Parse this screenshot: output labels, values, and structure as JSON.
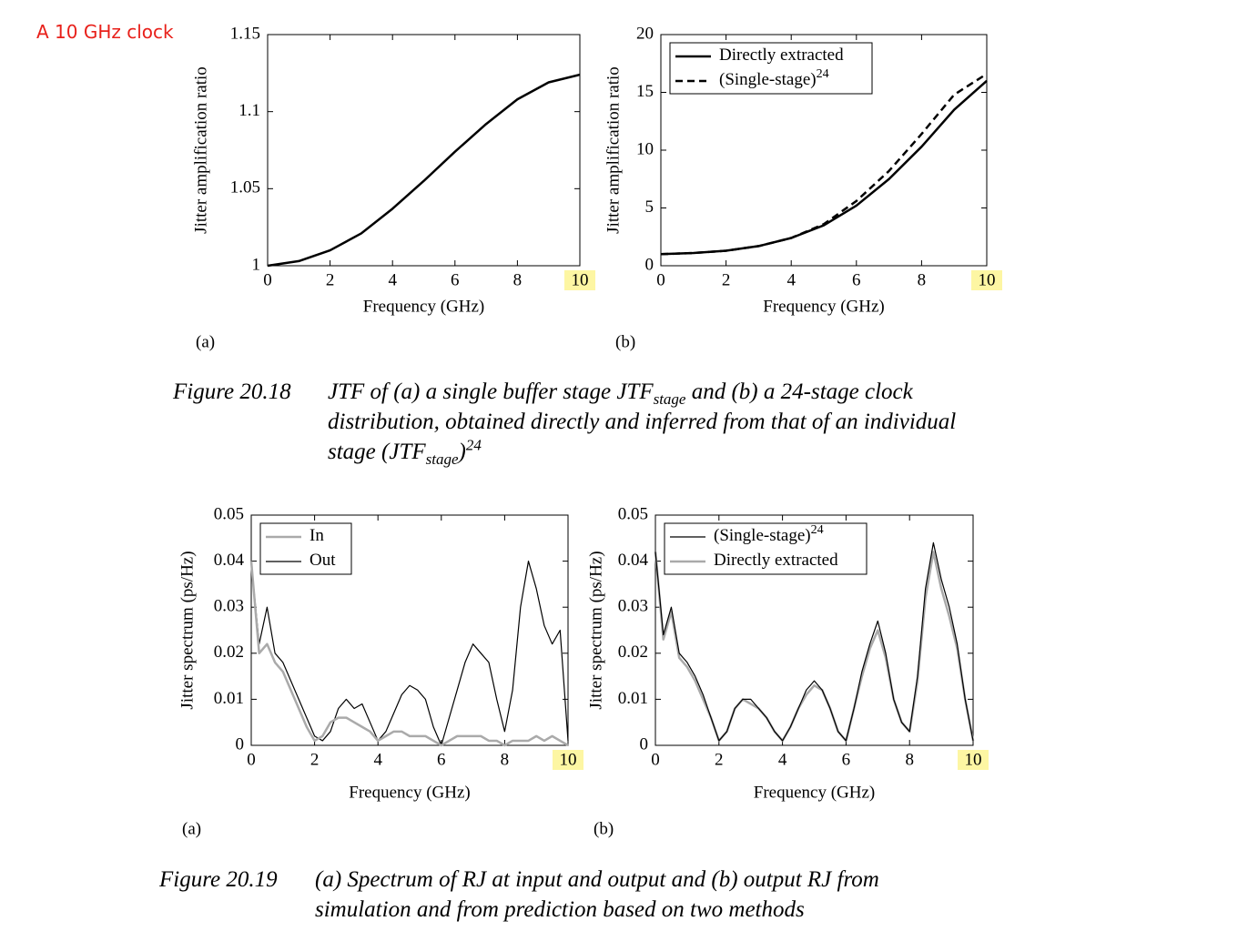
{
  "annotation": "A 10 GHz clock",
  "chart_data": [
    {
      "type": "line",
      "panel": "(a)",
      "xlabel": "Frequency (GHz)",
      "ylabel": "Jitter amplification ratio",
      "x": [
        0,
        1,
        2,
        3,
        4,
        5,
        6,
        7,
        8,
        9,
        10
      ],
      "values": [
        1.0,
        1.003,
        1.01,
        1.021,
        1.037,
        1.055,
        1.074,
        1.092,
        1.108,
        1.119,
        1.124
      ],
      "color": "#000000",
      "line_width": 2.5,
      "xlim": [
        0,
        10
      ],
      "xticks": [
        0,
        2,
        4,
        6,
        8,
        10
      ],
      "ylim": [
        1,
        1.15
      ],
      "yticks": [
        1,
        1.05,
        1.1,
        1.15
      ],
      "highlighted_xtick_color": "#fdf6a3"
    },
    {
      "type": "line",
      "panel": "(b)",
      "xlabel": "Frequency (GHz)",
      "ylabel": "Jitter amplification ratio",
      "x": [
        0,
        1,
        2,
        3,
        4,
        5,
        6,
        7,
        8,
        9,
        10
      ],
      "series": [
        {
          "name": "Directly extracted",
          "color": "#000000",
          "dashed": false,
          "line_width": 2.5,
          "values": [
            1.0,
            1.1,
            1.3,
            1.7,
            2.4,
            3.5,
            5.2,
            7.5,
            10.3,
            13.5,
            16.0
          ]
        },
        {
          "name": "(Single-stage)",
          "name_superscript": "24",
          "color": "#000000",
          "dashed": true,
          "line_width": 2.5,
          "values": [
            1.0,
            1.1,
            1.3,
            1.7,
            2.4,
            3.6,
            5.6,
            8.2,
            11.4,
            14.8,
            16.6
          ]
        }
      ],
      "legend": "upper left",
      "xlim": [
        0,
        10
      ],
      "xticks": [
        0,
        2,
        4,
        6,
        8,
        10
      ],
      "ylim": [
        0,
        20
      ],
      "yticks": [
        0,
        5,
        10,
        15,
        20
      ],
      "highlighted_xtick_color": "#fdf6a3"
    },
    {
      "type": "line",
      "panel": "(a)",
      "xlabel": "Frequency (GHz)",
      "ylabel": "Jitter spectrum (ps/Hz)",
      "x": [
        0,
        0.25,
        0.5,
        0.75,
        1,
        1.25,
        1.5,
        1.75,
        2,
        2.25,
        2.5,
        2.75,
        3,
        3.25,
        3.5,
        3.75,
        4,
        4.25,
        4.5,
        4.75,
        5,
        5.25,
        5.5,
        5.75,
        6,
        6.25,
        6.5,
        6.75,
        7,
        7.25,
        7.5,
        7.75,
        8,
        8.25,
        8.5,
        8.75,
        9,
        9.25,
        9.5,
        9.75,
        10
      ],
      "series": [
        {
          "name": "In",
          "color": "#aaaaaa",
          "dashed": false,
          "line_width": 2.5,
          "values": [
            0.04,
            0.02,
            0.022,
            0.018,
            0.016,
            0.012,
            0.008,
            0.004,
            0.001,
            0.002,
            0.005,
            0.006,
            0.006,
            0.005,
            0.004,
            0.003,
            0.001,
            0.002,
            0.003,
            0.003,
            0.002,
            0.002,
            0.002,
            0.001,
            0.0,
            0.001,
            0.002,
            0.002,
            0.002,
            0.002,
            0.001,
            0.001,
            0.0,
            0.001,
            0.001,
            0.001,
            0.002,
            0.001,
            0.002,
            0.001,
            0.0
          ]
        },
        {
          "name": "Out",
          "color": "#000000",
          "dashed": false,
          "line_width": 1.2,
          "values": [
            0.04,
            0.022,
            0.03,
            0.02,
            0.018,
            0.014,
            0.01,
            0.006,
            0.002,
            0.001,
            0.003,
            0.008,
            0.01,
            0.008,
            0.009,
            0.005,
            0.001,
            0.003,
            0.007,
            0.011,
            0.013,
            0.012,
            0.01,
            0.004,
            0.0,
            0.006,
            0.012,
            0.018,
            0.022,
            0.02,
            0.018,
            0.01,
            0.003,
            0.012,
            0.03,
            0.04,
            0.034,
            0.026,
            0.022,
            0.025,
            0.001
          ]
        }
      ],
      "legend": "upper left",
      "xlim": [
        0,
        10
      ],
      "xticks": [
        0,
        2,
        4,
        6,
        8,
        10
      ],
      "ylim": [
        0,
        0.05
      ],
      "yticks": [
        0,
        0.01,
        0.02,
        0.03,
        0.04,
        0.05
      ],
      "highlighted_xtick_color": "#fdf6a3"
    },
    {
      "type": "line",
      "panel": "(b)",
      "xlabel": "Frequency (GHz)",
      "ylabel": "Jitter spectrum (ps/Hz)",
      "x": [
        0,
        0.25,
        0.5,
        0.75,
        1,
        1.25,
        1.5,
        1.75,
        2,
        2.25,
        2.5,
        2.75,
        3,
        3.25,
        3.5,
        3.75,
        4,
        4.25,
        4.5,
        4.75,
        5,
        5.25,
        5.5,
        5.75,
        6,
        6.25,
        6.5,
        6.75,
        7,
        7.25,
        7.5,
        7.75,
        8,
        8.25,
        8.5,
        8.75,
        9,
        9.25,
        9.5,
        9.75,
        10
      ],
      "series": [
        {
          "name": "(Single-stage)",
          "name_superscript": "24",
          "color": "#000000",
          "dashed": false,
          "line_width": 1.2,
          "values": [
            0.042,
            0.024,
            0.03,
            0.02,
            0.018,
            0.015,
            0.011,
            0.006,
            0.001,
            0.003,
            0.008,
            0.01,
            0.01,
            0.008,
            0.006,
            0.003,
            0.001,
            0.004,
            0.008,
            0.012,
            0.014,
            0.012,
            0.008,
            0.003,
            0.001,
            0.008,
            0.016,
            0.022,
            0.027,
            0.02,
            0.01,
            0.005,
            0.003,
            0.015,
            0.034,
            0.044,
            0.036,
            0.03,
            0.022,
            0.01,
            0.001
          ]
        },
        {
          "name": "Directly extracted",
          "color": "#aaaaaa",
          "dashed": false,
          "line_width": 2.5,
          "values": [
            0.042,
            0.023,
            0.029,
            0.019,
            0.017,
            0.014,
            0.01,
            0.006,
            0.001,
            0.003,
            0.008,
            0.01,
            0.009,
            0.008,
            0.006,
            0.003,
            0.001,
            0.004,
            0.008,
            0.011,
            0.013,
            0.012,
            0.008,
            0.003,
            0.001,
            0.008,
            0.015,
            0.021,
            0.025,
            0.019,
            0.01,
            0.005,
            0.003,
            0.014,
            0.032,
            0.042,
            0.034,
            0.028,
            0.021,
            0.01,
            0.001
          ]
        }
      ],
      "legend": "upper left",
      "xlim": [
        0,
        10
      ],
      "xticks": [
        0,
        2,
        4,
        6,
        8,
        10
      ],
      "ylim": [
        0,
        0.05
      ],
      "yticks": [
        0,
        0.01,
        0.02,
        0.03,
        0.04,
        0.05
      ],
      "highlighted_xtick_color": "#fdf6a3"
    }
  ],
  "figures": [
    {
      "number": "Figure 20.18",
      "caption": [
        {
          "text": "JTF of (a) a single buffer stage JTF"
        },
        {
          "sub": "stage"
        },
        {
          "text": " and (b) a 24-stage clock distribution, obtained directly and inferred from that of an individual stage (JTF"
        },
        {
          "sub": "stage"
        },
        {
          "text": ")"
        },
        {
          "sup": "24"
        }
      ]
    },
    {
      "number": "Figure 20.19",
      "caption": [
        {
          "text": "(a) Spectrum of RJ at input and output and (b) output RJ from simulation and from prediction based on two methods"
        }
      ]
    }
  ]
}
